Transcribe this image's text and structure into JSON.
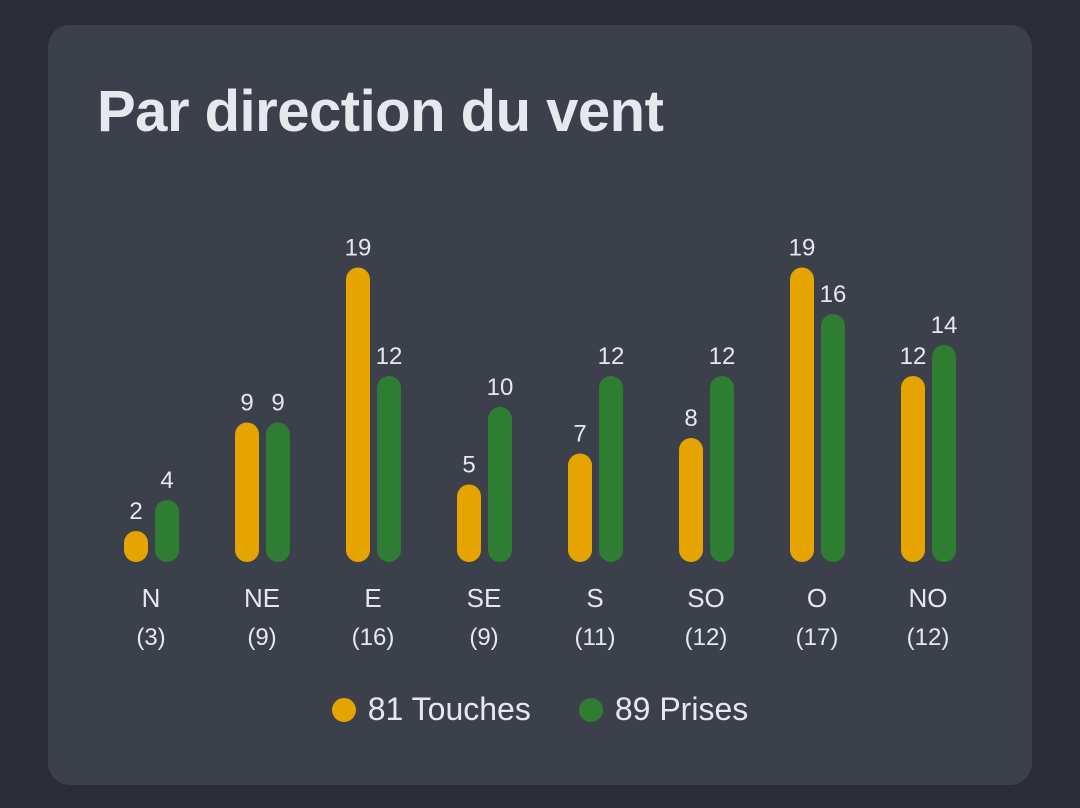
{
  "title": "Par direction du vent",
  "colors": {
    "background": "#2a2d37",
    "card": "#3b404b",
    "text": "#e6e8ee",
    "touches": "#e5a400",
    "prises": "#2e7d32"
  },
  "chart_data": {
    "type": "bar",
    "title": "Par direction du vent",
    "categories": [
      "N",
      "NE",
      "E",
      "SE",
      "S",
      "SO",
      "O",
      "NO"
    ],
    "category_counts": [
      "(3)",
      "(9)",
      "(16)",
      "(9)",
      "(11)",
      "(12)",
      "(17)",
      "(12)"
    ],
    "series": [
      {
        "name": "Touches",
        "total": 81,
        "color": "#e5a400",
        "values": [
          2,
          9,
          19,
          5,
          7,
          8,
          19,
          12
        ]
      },
      {
        "name": "Prises",
        "total": 89,
        "color": "#2e7d32",
        "values": [
          4,
          9,
          12,
          10,
          12,
          12,
          16,
          14
        ]
      }
    ],
    "ylim": [
      0,
      19
    ],
    "grid": false,
    "legend_position": "bottom-center"
  },
  "legend": [
    {
      "label": "81 Touches"
    },
    {
      "label": "89 Prises"
    }
  ]
}
